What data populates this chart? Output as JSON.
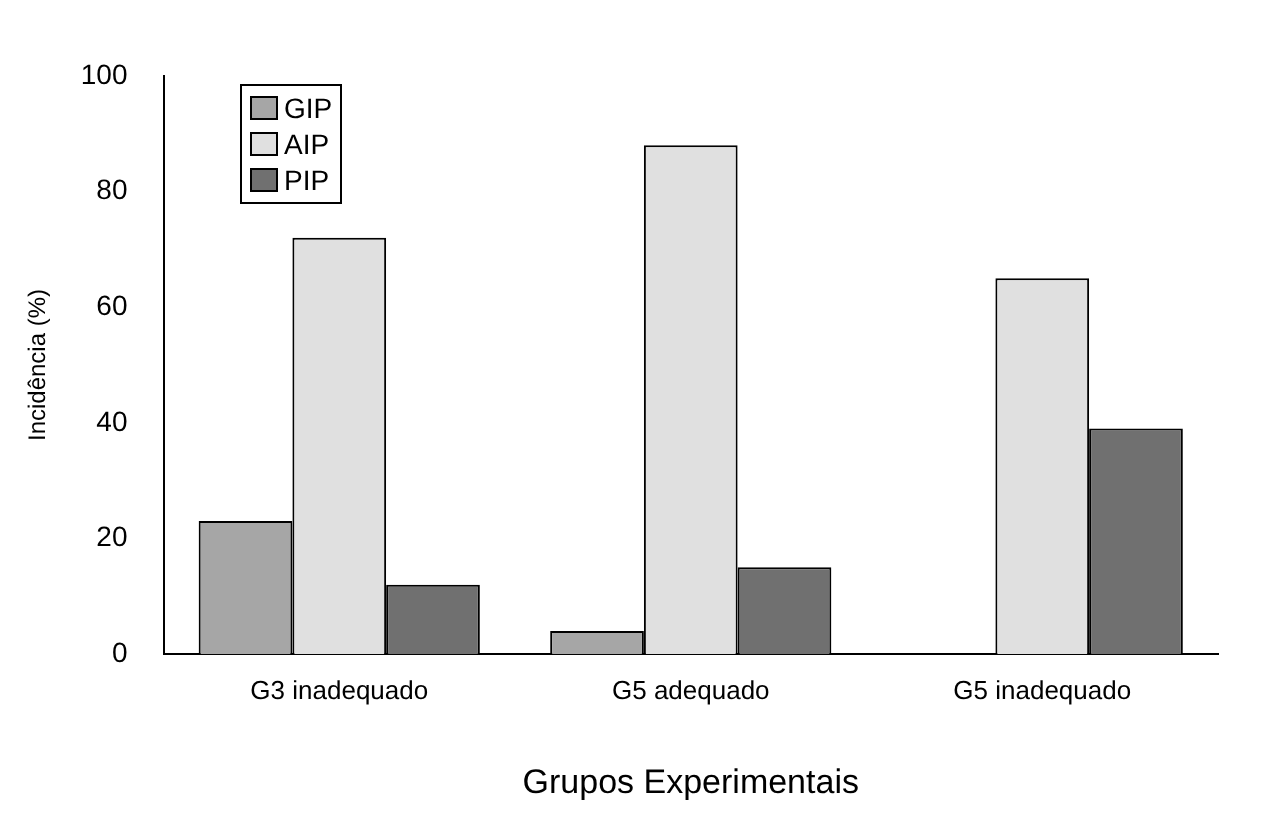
{
  "chart_data": {
    "type": "bar",
    "xlabel": "Grupos Experimentais",
    "ylabel": "Incidência (%)",
    "categories": [
      "G3 inadequado",
      "G5 adequado",
      "G5 inadequado"
    ],
    "series": [
      {
        "name": "GIP",
        "color": "#a6a6a6",
        "values": [
          23,
          4,
          0
        ]
      },
      {
        "name": "AIP",
        "color": "#e0e0e0",
        "values": [
          72,
          88,
          65
        ]
      },
      {
        "name": "PIP",
        "color": "#707070",
        "values": [
          12,
          15,
          39
        ]
      }
    ],
    "ylim": [
      0,
      100
    ],
    "yticks": [
      0,
      20,
      40,
      60,
      80,
      100
    ],
    "grid": false,
    "legend": "top left"
  }
}
